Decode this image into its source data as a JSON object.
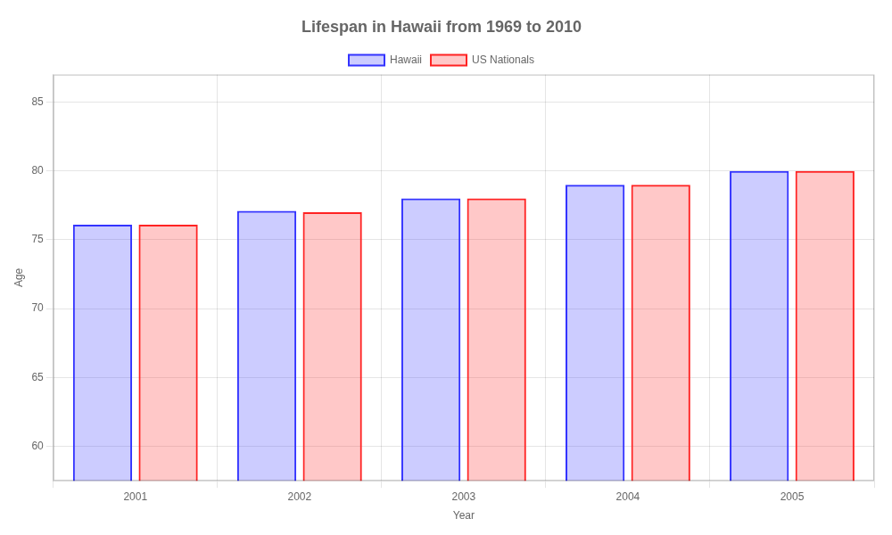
{
  "chart_data": {
    "type": "bar",
    "title": "Lifespan in Hawaii from 1969 to 2010",
    "x_label": "Year",
    "y_label": "Age",
    "categories": [
      "2001",
      "2002",
      "2003",
      "2004",
      "2005"
    ],
    "series": [
      {
        "name": "Hawaii",
        "color": "#3333ff",
        "values": [
          76.1,
          77.1,
          78.0,
          79.0,
          80.0
        ]
      },
      {
        "name": "US Nationals",
        "color": "#ff2222",
        "values": [
          76.1,
          77.0,
          78.0,
          79.0,
          80.0
        ]
      }
    ],
    "ylim": [
      57.5,
      87
    ],
    "yticks": [
      60,
      65,
      70,
      75,
      80,
      85
    ],
    "grid": true,
    "legend": "top"
  }
}
